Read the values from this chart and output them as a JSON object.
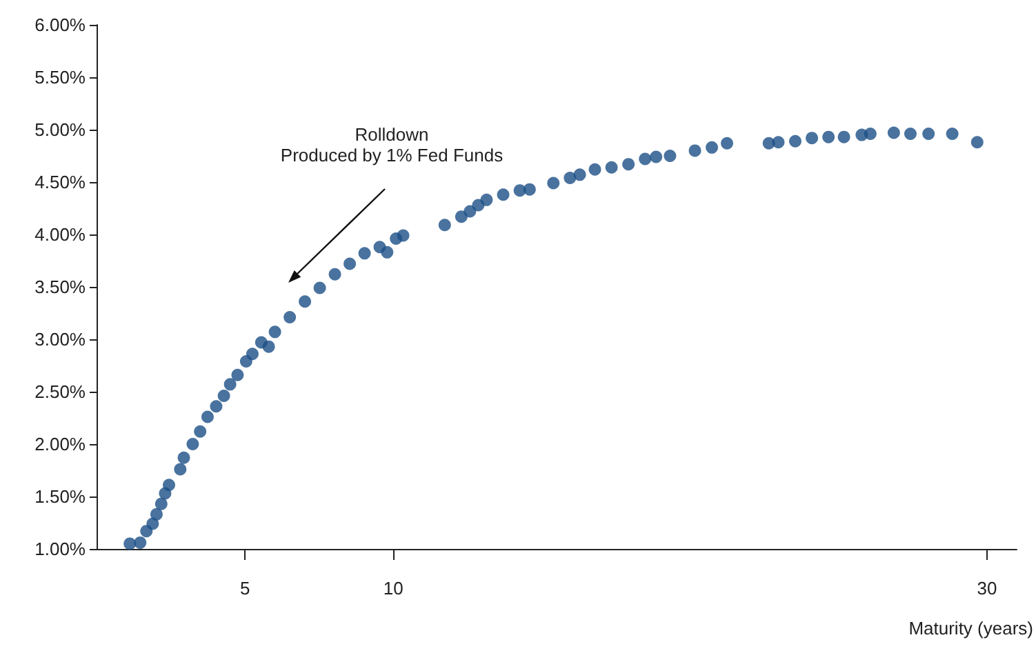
{
  "chart_data": {
    "type": "scatter",
    "xlabel": "Maturity (years)",
    "annotations": [
      "Rolldown\nProduced by 1% Fed Funds"
    ],
    "x": [
      1.12,
      1.47,
      1.68,
      1.89,
      2.02,
      2.18,
      2.31,
      2.44,
      2.82,
      2.94,
      3.24,
      3.49,
      3.74,
      4.03,
      4.29,
      4.5,
      4.75,
      5.04,
      5.25,
      5.55,
      5.8,
      6.01,
      6.51,
      7.02,
      7.52,
      8.03,
      8.53,
      9.03,
      9.54,
      9.79,
      10.09,
      10.33,
      11.73,
      12.29,
      12.58,
      12.86,
      13.14,
      13.7,
      14.26,
      14.59,
      15.39,
      15.95,
      16.28,
      16.79,
      17.35,
      17.92,
      18.48,
      18.85,
      19.32,
      20.16,
      20.73,
      21.24,
      22.65,
      22.97,
      23.54,
      24.1,
      24.66,
      25.18,
      25.78,
      26.07,
      26.86,
      27.42,
      28.03,
      28.83,
      29.67
    ],
    "series": [
      {
        "color": "#1b4f86",
        "values": [
          1.05,
          1.06,
          1.17,
          1.24,
          1.33,
          1.43,
          1.53,
          1.61,
          1.76,
          1.87,
          2.0,
          2.12,
          2.26,
          2.36,
          2.46,
          2.57,
          2.66,
          2.79,
          2.86,
          2.97,
          2.93,
          3.07,
          3.21,
          3.36,
          3.49,
          3.62,
          3.72,
          3.82,
          3.88,
          3.83,
          3.96,
          3.99,
          4.09,
          4.17,
          4.22,
          4.28,
          4.33,
          4.38,
          4.42,
          4.43,
          4.49,
          4.54,
          4.57,
          4.62,
          4.64,
          4.67,
          4.72,
          4.74,
          4.75,
          4.8,
          4.83,
          4.87,
          4.87,
          4.88,
          4.89,
          4.92,
          4.93,
          4.93,
          4.95,
          4.96,
          4.97,
          4.96,
          4.96,
          4.96,
          4.88
        ]
      }
    ],
    "xlim": [
      0,
      31
    ],
    "xticks": [
      5,
      10,
      30
    ],
    "ylim": [
      1,
      6
    ],
    "yticks": [
      {
        "value": 1,
        "label": "1.00%"
      },
      {
        "value": 1.5,
        "label": "1.50%"
      },
      {
        "value": 2,
        "label": "2.00%"
      },
      {
        "value": 2.5,
        "label": "2.50%"
      },
      {
        "value": 3,
        "label": "3.00%"
      },
      {
        "value": 3.5,
        "label": "3.50%"
      },
      {
        "value": 4,
        "label": "4.00%"
      },
      {
        "value": 4.5,
        "label": "4.50%"
      },
      {
        "value": 5,
        "label": "5.00%"
      },
      {
        "value": 5.5,
        "label": "5.50%"
      },
      {
        "value": 6,
        "label": "6.00%"
      }
    ],
    "grid": false,
    "marker": "circle"
  }
}
